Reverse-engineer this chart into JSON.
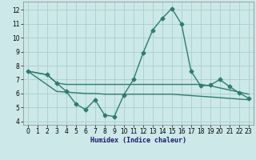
{
  "line1_x": [
    0,
    2,
    3,
    4,
    5,
    6,
    7,
    8,
    9,
    10,
    11,
    12,
    13,
    14,
    15,
    16,
    17,
    18,
    19,
    20,
    21,
    22,
    23
  ],
  "line1_y": [
    7.6,
    7.35,
    6.75,
    6.15,
    5.25,
    4.85,
    5.55,
    4.45,
    4.35,
    5.9,
    7.0,
    8.9,
    10.55,
    11.4,
    12.1,
    11.0,
    7.6,
    6.55,
    6.6,
    7.0,
    6.5,
    6.05,
    5.65
  ],
  "line2_x": [
    0,
    2,
    3,
    4,
    5,
    6,
    7,
    8,
    9,
    10,
    11,
    12,
    13,
    14,
    15,
    16,
    17,
    18,
    19,
    20,
    21,
    22,
    23
  ],
  "line2_y": [
    7.6,
    7.35,
    6.75,
    6.65,
    6.65,
    6.65,
    6.65,
    6.65,
    6.65,
    6.65,
    6.65,
    6.65,
    6.65,
    6.65,
    6.65,
    6.65,
    6.65,
    6.65,
    6.55,
    6.4,
    6.25,
    6.1,
    5.95
  ],
  "line3_x": [
    0,
    3,
    4,
    5,
    6,
    7,
    8,
    9,
    10,
    11,
    12,
    13,
    14,
    15,
    16,
    17,
    18,
    19,
    20,
    21,
    22,
    23
  ],
  "line3_y": [
    7.6,
    6.15,
    6.1,
    6.05,
    6.0,
    6.0,
    5.95,
    5.95,
    5.95,
    5.95,
    5.95,
    5.95,
    5.95,
    5.95,
    5.9,
    5.85,
    5.8,
    5.75,
    5.7,
    5.65,
    5.6,
    5.55
  ],
  "line_color": "#2d7d6e",
  "bg_color": "#cce8e8",
  "grid_color": "#aacfcf",
  "xlabel": "Humidex (Indice chaleur)",
  "ylim": [
    3.75,
    12.6
  ],
  "xlim": [
    -0.5,
    23.5
  ],
  "yticks": [
    4,
    5,
    6,
    7,
    8,
    9,
    10,
    11,
    12
  ],
  "xticks": [
    0,
    1,
    2,
    3,
    4,
    5,
    6,
    7,
    8,
    9,
    10,
    11,
    12,
    13,
    14,
    15,
    16,
    17,
    18,
    19,
    20,
    21,
    22,
    23
  ],
  "marker": "D",
  "markersize": 2.5,
  "linewidth": 1.0,
  "xlabel_fontsize": 6.0,
  "tick_fontsize": 5.5
}
